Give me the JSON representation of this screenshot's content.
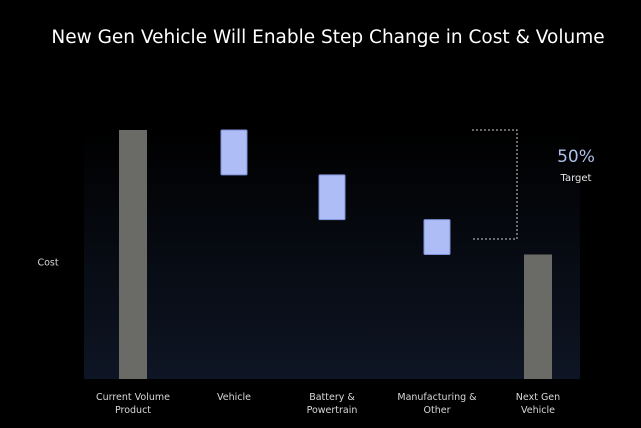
{
  "chart_data": {
    "type": "waterfall",
    "title": "New Gen Vehicle Will Enable Step Change in Cost & Volume",
    "y_label": "Cost",
    "categories": [
      "Current Volume\nProduct",
      "Vehicle",
      "Battery &\nPowertrain",
      "Manufacturing &\nOther",
      "Next Gen\nVehicle"
    ],
    "values": [
      100,
      -18,
      -18,
      -14,
      50
    ],
    "totals": [
      true,
      false,
      false,
      false,
      true
    ],
    "total_color": "#6a6a67",
    "step_color": "#aebdf6",
    "ylim": [
      0,
      100
    ],
    "annotation": {
      "value": "50%",
      "label": "Target",
      "color": "#aebfe8"
    }
  }
}
